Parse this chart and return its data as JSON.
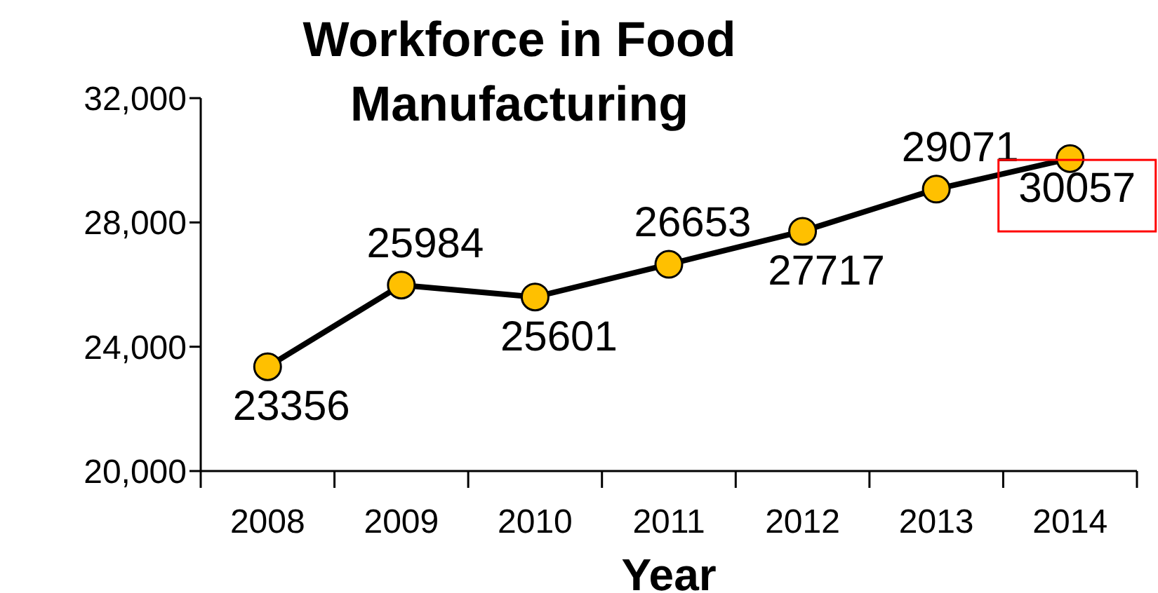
{
  "chart_data": {
    "type": "line",
    "title": "Workforce in Food Manufacturing",
    "xlabel": "Year",
    "categories": [
      "2008",
      "2009",
      "2010",
      "2011",
      "2012",
      "2013",
      "2014"
    ],
    "series": [
      {
        "color": "#000000",
        "colors": [
          "#ffc000",
          "#ffc000",
          "#ffc000",
          "#ffc000",
          "#ffc000",
          "#ffc000",
          "#ffc000"
        ],
        "values": [
          23356,
          25984,
          25601,
          26653,
          27717,
          29071,
          30057
        ]
      }
    ],
    "marker": "circle",
    "line_style": "solid",
    "ylim": [
      20000,
      32000
    ],
    "yticks": [
      {
        "value": 20000,
        "label": "20,000"
      },
      {
        "value": 24000,
        "label": "24,000"
      },
      {
        "value": 28000,
        "label": "28,000"
      },
      {
        "value": 32000,
        "label": "32,000"
      }
    ],
    "grid": false,
    "legend": false,
    "data_labels": true
  }
}
